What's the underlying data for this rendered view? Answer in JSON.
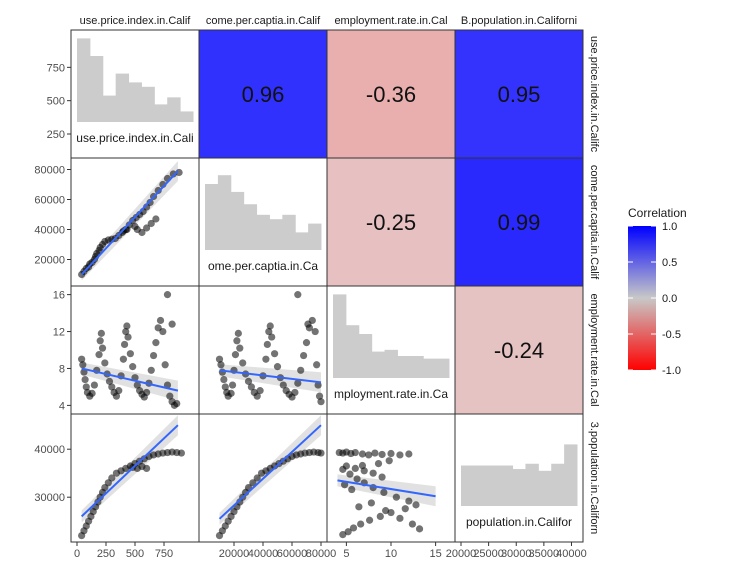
{
  "chart_data": {
    "type": "scatter",
    "variables": [
      "use.price.index.in.Calif",
      "come.per.captia.in.Calif",
      "employment.rate.in.Cal",
      "B.population.in.Californi"
    ],
    "column_headers": [
      "use.price.index.in.Calif",
      "come.per.captia.in.Calif",
      "employment.rate.in.Cal",
      "B.population.in.Californi"
    ],
    "row_headers": [
      "use.price.index.in.Califc",
      "come.per.captia.in.Calif",
      "employment.rate.in.Cal",
      "3.population.in.Californ"
    ],
    "diagonal_labels": [
      "use.price.index.in.Cali",
      "ome.per.captia.in.Ca",
      "mployment.rate.in.Ca",
      "population.in.Califor"
    ],
    "correlations": [
      {
        "row": 0,
        "col": 1,
        "value": 0.96,
        "label": "0.96"
      },
      {
        "row": 0,
        "col": 2,
        "value": -0.36,
        "label": "-0.36"
      },
      {
        "row": 0,
        "col": 3,
        "value": 0.95,
        "label": "0.95"
      },
      {
        "row": 1,
        "col": 2,
        "value": -0.25,
        "label": "-0.25"
      },
      {
        "row": 1,
        "col": 3,
        "value": 0.99,
        "label": "0.99"
      },
      {
        "row": 2,
        "col": 3,
        "value": -0.24,
        "label": "-0.24"
      }
    ],
    "axes": {
      "x": [
        {
          "range": [
            0,
            1000
          ],
          "ticks": [
            0,
            250,
            500,
            750
          ],
          "tick_labels": [
            "0",
            "250",
            "500",
            "750"
          ]
        },
        {
          "range": [
            0,
            80000
          ],
          "ticks": [
            20000,
            40000,
            60000,
            80000
          ],
          "tick_labels": [
            "20000",
            "40000",
            "60000",
            "80000"
          ]
        },
        {
          "range": [
            3.5,
            16.5
          ],
          "ticks": [
            5,
            10,
            15
          ],
          "tick_labels": [
            "5",
            "10",
            "15"
          ]
        },
        {
          "range": [
            20000,
            41000
          ],
          "ticks": [
            20000,
            25000,
            30000,
            35000,
            40000
          ],
          "tick_labels": [
            "20000",
            "25000",
            "30000",
            "35000",
            "40000"
          ]
        }
      ],
      "y": [
        {
          "range": [
            100,
            1000
          ],
          "ticks": [
            250,
            500,
            750
          ],
          "tick_labels": [
            "250",
            "500",
            "750"
          ]
        },
        {
          "range": [
            5000,
            85000
          ],
          "ticks": [
            20000,
            40000,
            60000,
            80000
          ],
          "tick_labels": [
            "20000",
            "40000",
            "60000",
            "80000"
          ]
        },
        {
          "range": [
            3.5,
            16.5
          ],
          "ticks": [
            4,
            8,
            12,
            16
          ],
          "tick_labels": [
            "4",
            "8",
            "12",
            "16"
          ]
        },
        {
          "range": [
            21500,
            46500
          ],
          "ticks": [
            30000,
            40000
          ],
          "tick_labels": [
            "30000",
            "40000"
          ]
        }
      ]
    },
    "histograms": [
      [
        0.95,
        0.75,
        0.3,
        0.55,
        0.45,
        0.4,
        0.2,
        0.28,
        0.12
      ],
      [
        0.75,
        0.85,
        0.66,
        0.52,
        0.4,
        0.35,
        0.4,
        0.2,
        0.3
      ],
      [
        0.95,
        0.6,
        0.5,
        0.3,
        0.32,
        0.25,
        0.25,
        0.22,
        0.22
      ],
      [
        0.46,
        0.46,
        0.46,
        0.46,
        0.42,
        0.48,
        0.4,
        0.48,
        0.7
      ]
    ],
    "scatter_series": {
      "price_vs_income": [
        [
          40,
          10000
        ],
        [
          60,
          12000
        ],
        [
          80,
          14000
        ],
        [
          100,
          15000
        ],
        [
          110,
          17000
        ],
        [
          130,
          18000
        ],
        [
          150,
          20000
        ],
        [
          160,
          22000
        ],
        [
          170,
          24000
        ],
        [
          190,
          26000
        ],
        [
          200,
          28000
        ],
        [
          220,
          30000
        ],
        [
          240,
          32000
        ],
        [
          270,
          33000
        ],
        [
          300,
          33500
        ],
        [
          330,
          34000
        ],
        [
          360,
          36000
        ],
        [
          390,
          38000
        ],
        [
          420,
          40000
        ],
        [
          450,
          43000
        ],
        [
          480,
          46000
        ],
        [
          510,
          48000
        ],
        [
          540,
          50000
        ],
        [
          570,
          52000
        ],
        [
          600,
          55000
        ],
        [
          630,
          58000
        ],
        [
          660,
          62000
        ],
        [
          700,
          66000
        ],
        [
          740,
          70000
        ],
        [
          780,
          74000
        ],
        [
          830,
          77000
        ],
        [
          880,
          78000
        ],
        [
          500,
          42000
        ],
        [
          520,
          40000
        ],
        [
          560,
          38000
        ],
        [
          600,
          41000
        ],
        [
          640,
          44000
        ],
        [
          680,
          47000
        ],
        [
          400,
          39000
        ],
        [
          430,
          40000
        ]
      ],
      "price_vs_unemployment": [
        [
          40,
          9.0
        ],
        [
          50,
          8.4
        ],
        [
          60,
          7.6
        ],
        [
          70,
          6.8
        ],
        [
          80,
          6.0
        ],
        [
          90,
          5.4
        ],
        [
          110,
          5.0
        ],
        [
          130,
          5.3
        ],
        [
          150,
          6.2
        ],
        [
          170,
          7.8
        ],
        [
          190,
          9.5
        ],
        [
          200,
          11.0
        ],
        [
          210,
          11.8
        ],
        [
          220,
          10.2
        ],
        [
          240,
          8.6
        ],
        [
          260,
          7.4
        ],
        [
          280,
          6.6
        ],
        [
          300,
          6.0
        ],
        [
          320,
          5.4
        ],
        [
          340,
          5.0
        ],
        [
          360,
          5.6
        ],
        [
          380,
          7.2
        ],
        [
          400,
          9.0
        ],
        [
          410,
          10.6
        ],
        [
          420,
          12.0
        ],
        [
          430,
          12.6
        ],
        [
          440,
          11.4
        ],
        [
          460,
          9.6
        ],
        [
          480,
          8.2
        ],
        [
          500,
          7.0
        ],
        [
          520,
          6.2
        ],
        [
          540,
          5.6
        ],
        [
          560,
          5.2
        ],
        [
          580,
          4.9
        ],
        [
          600,
          5.4
        ],
        [
          620,
          6.4
        ],
        [
          640,
          7.8
        ],
        [
          660,
          9.4
        ],
        [
          680,
          10.8
        ],
        [
          700,
          12.4
        ],
        [
          720,
          13.2
        ],
        [
          740,
          12.0
        ],
        [
          760,
          8.4
        ],
        [
          780,
          6.2
        ],
        [
          800,
          5.0
        ],
        [
          820,
          4.4
        ],
        [
          840,
          4.0
        ],
        [
          860,
          4.2
        ],
        [
          780,
          16.0
        ],
        [
          820,
          12.8
        ]
      ],
      "price_vs_population": [
        [
          40,
          22000
        ],
        [
          60,
          23000
        ],
        [
          80,
          24000
        ],
        [
          100,
          25000
        ],
        [
          120,
          26000
        ],
        [
          140,
          27000
        ],
        [
          160,
          28000
        ],
        [
          180,
          29000
        ],
        [
          200,
          30000
        ],
        [
          220,
          31000
        ],
        [
          240,
          32000
        ],
        [
          270,
          33000
        ],
        [
          300,
          34000
        ],
        [
          340,
          35000
        ],
        [
          380,
          35500
        ],
        [
          420,
          36000
        ],
        [
          460,
          36500
        ],
        [
          500,
          37000
        ],
        [
          540,
          37500
        ],
        [
          580,
          38000
        ],
        [
          620,
          38500
        ],
        [
          660,
          38800
        ],
        [
          700,
          39000
        ],
        [
          740,
          39200
        ],
        [
          780,
          39300
        ],
        [
          820,
          39400
        ],
        [
          860,
          39300
        ],
        [
          900,
          39200
        ],
        [
          520,
          36000
        ],
        [
          480,
          36200
        ],
        [
          560,
          36400
        ],
        [
          600,
          36000
        ]
      ],
      "income_vs_unemployment": [
        [
          10000,
          9.0
        ],
        [
          11000,
          8.4
        ],
        [
          12000,
          7.6
        ],
        [
          13000,
          6.8
        ],
        [
          14000,
          6.0
        ],
        [
          15000,
          5.4
        ],
        [
          16000,
          5.0
        ],
        [
          18000,
          5.3
        ],
        [
          19000,
          6.2
        ],
        [
          20000,
          7.8
        ],
        [
          21000,
          9.5
        ],
        [
          22000,
          11.0
        ],
        [
          23000,
          11.8
        ],
        [
          24000,
          10.2
        ],
        [
          26000,
          8.6
        ],
        [
          28000,
          7.4
        ],
        [
          30000,
          6.6
        ],
        [
          32000,
          6.0
        ],
        [
          34000,
          5.4
        ],
        [
          36000,
          5.0
        ],
        [
          38000,
          5.6
        ],
        [
          40000,
          7.2
        ],
        [
          42000,
          9.0
        ],
        [
          43000,
          10.6
        ],
        [
          44000,
          12.0
        ],
        [
          45000,
          12.6
        ],
        [
          46000,
          11.4
        ],
        [
          48000,
          9.6
        ],
        [
          50000,
          8.2
        ],
        [
          52000,
          7.0
        ],
        [
          54000,
          6.2
        ],
        [
          56000,
          5.6
        ],
        [
          58000,
          5.2
        ],
        [
          60000,
          4.9
        ],
        [
          62000,
          5.4
        ],
        [
          64000,
          6.4
        ],
        [
          66000,
          7.8
        ],
        [
          68000,
          9.4
        ],
        [
          70000,
          10.8
        ],
        [
          72000,
          12.4
        ],
        [
          74000,
          13.2
        ],
        [
          76000,
          12.0
        ],
        [
          77000,
          8.4
        ],
        [
          78000,
          6.2
        ],
        [
          79000,
          5.0
        ],
        [
          80000,
          4.4
        ],
        [
          64000,
          16.0
        ],
        [
          71000,
          12.8
        ]
      ],
      "income_vs_population": [
        [
          10000,
          22000
        ],
        [
          12000,
          23000
        ],
        [
          14000,
          24000
        ],
        [
          16000,
          25000
        ],
        [
          18000,
          26000
        ],
        [
          20000,
          27000
        ],
        [
          22000,
          28000
        ],
        [
          24000,
          29000
        ],
        [
          26000,
          30000
        ],
        [
          28000,
          31000
        ],
        [
          30000,
          32000
        ],
        [
          33000,
          33000
        ],
        [
          36000,
          34000
        ],
        [
          39000,
          35000
        ],
        [
          42000,
          35500
        ],
        [
          45000,
          36000
        ],
        [
          48000,
          36500
        ],
        [
          51000,
          37000
        ],
        [
          54000,
          37500
        ],
        [
          57000,
          38000
        ],
        [
          60000,
          38500
        ],
        [
          63000,
          38800
        ],
        [
          66000,
          39000
        ],
        [
          69000,
          39200
        ],
        [
          72000,
          39300
        ],
        [
          75000,
          39400
        ],
        [
          78000,
          39300
        ],
        [
          80000,
          39200
        ]
      ],
      "unemployment_vs_population": [
        [
          4.2,
          39300
        ],
        [
          4.6,
          39200
        ],
        [
          5.0,
          39400
        ],
        [
          5.5,
          39100
        ],
        [
          6.0,
          39300
        ],
        [
          6.8,
          39000
        ],
        [
          7.5,
          38800
        ],
        [
          8.2,
          39200
        ],
        [
          9.0,
          38900
        ],
        [
          10.0,
          39100
        ],
        [
          11.0,
          38800
        ],
        [
          12.0,
          39000
        ],
        [
          5.0,
          36500
        ],
        [
          6.0,
          36000
        ],
        [
          7.0,
          35500
        ],
        [
          8.0,
          35000
        ],
        [
          9.0,
          34200
        ],
        [
          4.6,
          35800
        ],
        [
          5.4,
          34800
        ],
        [
          6.2,
          33800
        ],
        [
          7.0,
          33000
        ],
        [
          8.0,
          32000
        ],
        [
          9.2,
          31000
        ],
        [
          10.6,
          30000
        ],
        [
          12.0,
          29200
        ],
        [
          12.8,
          28400
        ],
        [
          11.6,
          27600
        ],
        [
          10.0,
          26800
        ],
        [
          8.8,
          26000
        ],
        [
          7.6,
          25200
        ],
        [
          6.6,
          24400
        ],
        [
          5.8,
          23600
        ],
        [
          5.2,
          22800
        ],
        [
          4.6,
          22200
        ],
        [
          6.4,
          28000
        ],
        [
          7.8,
          28800
        ],
        [
          9.4,
          27200
        ],
        [
          11.0,
          25600
        ],
        [
          12.4,
          24400
        ],
        [
          13.2,
          23400
        ],
        [
          5.6,
          31600
        ],
        [
          4.8,
          32600
        ],
        [
          9.8,
          37600
        ],
        [
          8.6,
          37000
        ],
        [
          6.8,
          36600
        ]
      ]
    },
    "fits": [
      {
        "row": 1,
        "col": 0,
        "from": [
          40,
          10000
        ],
        "to": [
          870,
          79000
        ]
      },
      {
        "row": 2,
        "col": 0,
        "from": [
          40,
          8.0
        ],
        "to": [
          870,
          5.6
        ]
      },
      {
        "row": 2,
        "col": 1,
        "from": [
          10000,
          7.8
        ],
        "to": [
          80000,
          6.5
        ]
      },
      {
        "row": 3,
        "col": 0,
        "from": [
          40,
          26000
        ],
        "to": [
          870,
          45000
        ]
      },
      {
        "row": 3,
        "col": 1,
        "from": [
          10000,
          25500
        ],
        "to": [
          80000,
          45000
        ]
      },
      {
        "row": 3,
        "col": 2,
        "from": [
          4,
          33500
        ],
        "to": [
          15,
          30200
        ]
      }
    ],
    "legend": {
      "title": "Correlation",
      "ticks": [
        "1.0",
        "0.5",
        "0.0",
        "-0.5",
        "-1.0"
      ],
      "tick_values": [
        1.0,
        0.5,
        0.0,
        -0.5,
        -1.0
      ],
      "position": "right",
      "colors": {
        "low": "#ff0000",
        "mid": "#c8c8c8",
        "high": "#0000ff"
      }
    },
    "colors": {
      "hist": "#cccccc",
      "points": "#000000",
      "fit": "#3366ff",
      "ribbon": "#bdbdbd"
    }
  }
}
